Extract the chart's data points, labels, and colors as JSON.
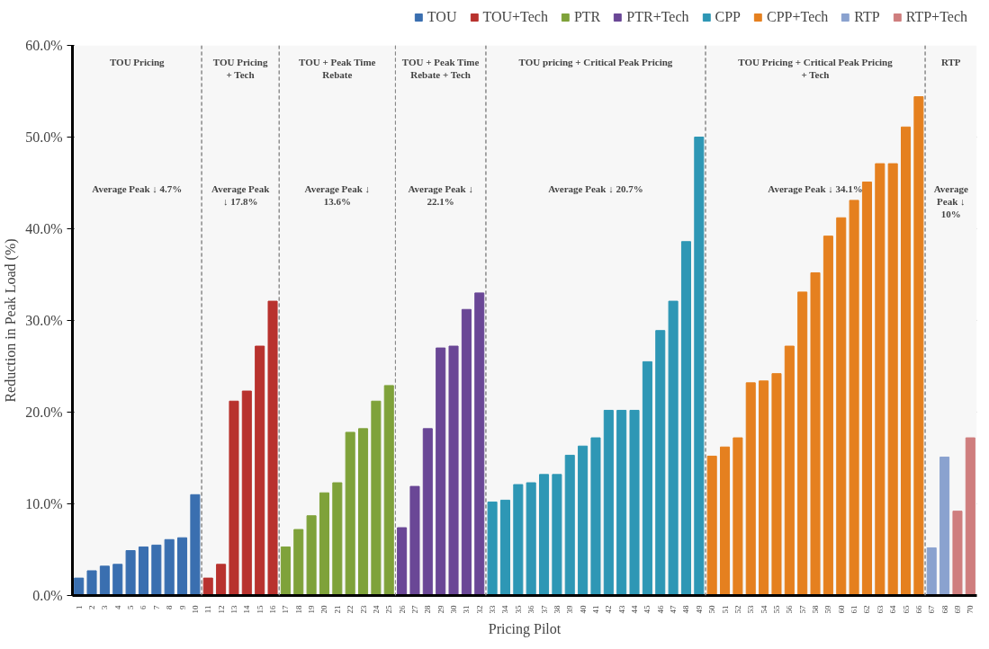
{
  "chart_data": {
    "type": "bar",
    "ylabel": "Reduction in Peak Load (%)",
    "xlabel": "Pricing Pilot",
    "categories": [
      "1",
      "2",
      "3",
      "4",
      "5",
      "6",
      "7",
      "8",
      "9",
      "10",
      "11",
      "12",
      "13",
      "14",
      "15",
      "16",
      "17",
      "18",
      "19",
      "20",
      "21",
      "22",
      "23",
      "24",
      "25",
      "26",
      "27",
      "28",
      "29",
      "30",
      "31",
      "32",
      "33",
      "34",
      "35",
      "36",
      "37",
      "38",
      "39",
      "40",
      "41",
      "42",
      "43",
      "44",
      "45",
      "46",
      "47",
      "48",
      "49",
      "50",
      "51",
      "52",
      "53",
      "54",
      "55",
      "56",
      "57",
      "58",
      "59",
      "60",
      "61",
      "62",
      "63",
      "64",
      "65",
      "66",
      "67",
      "68",
      "69",
      "70"
    ],
    "series": [
      {
        "name": "TOU",
        "color": "#3a6fb0",
        "values": [
          1.9,
          2.7,
          3.2,
          3.4,
          4.9,
          5.3,
          5.5,
          6.1,
          6.3,
          11.0,
          null,
          null,
          null,
          null,
          null,
          null,
          null,
          null,
          null,
          null,
          null,
          null,
          null,
          null,
          null,
          null,
          null,
          null,
          null,
          null,
          null,
          null,
          null,
          null,
          null,
          null,
          null,
          null,
          null,
          null,
          null,
          null,
          null,
          null,
          null,
          null,
          null,
          null,
          null,
          null,
          null,
          null,
          null,
          null,
          null,
          null,
          null,
          null,
          null,
          null,
          null,
          null,
          null,
          null,
          null,
          null,
          null,
          null,
          null,
          null
        ]
      },
      {
        "name": "TOU+Tech",
        "color": "#b8322e",
        "values": [
          null,
          null,
          null,
          null,
          null,
          null,
          null,
          null,
          null,
          null,
          1.9,
          3.4,
          21.2,
          22.3,
          27.2,
          32.1,
          null,
          null,
          null,
          null,
          null,
          null,
          null,
          null,
          null,
          null,
          null,
          null,
          null,
          null,
          null,
          null,
          null,
          null,
          null,
          null,
          null,
          null,
          null,
          null,
          null,
          null,
          null,
          null,
          null,
          null,
          null,
          null,
          null,
          null,
          null,
          null,
          null,
          null,
          null,
          null,
          null,
          null,
          null,
          null,
          null,
          null,
          null,
          null,
          null,
          null,
          null,
          null,
          null,
          null
        ]
      },
      {
        "name": "PTR",
        "color": "#7fa23a",
        "values": [
          null,
          null,
          null,
          null,
          null,
          null,
          null,
          null,
          null,
          null,
          null,
          null,
          null,
          null,
          null,
          null,
          5.3,
          7.2,
          8.7,
          11.2,
          12.3,
          17.8,
          18.2,
          21.2,
          22.9,
          null,
          null,
          null,
          null,
          null,
          null,
          null,
          null,
          null,
          null,
          null,
          null,
          null,
          null,
          null,
          null,
          null,
          null,
          null,
          null,
          null,
          null,
          null,
          null,
          null,
          null,
          null,
          null,
          null,
          null,
          null,
          null,
          null,
          null,
          null,
          null,
          null,
          null,
          null,
          null,
          null,
          null,
          null,
          null,
          null
        ]
      },
      {
        "name": "PTR+Tech",
        "color": "#6a4796",
        "values": [
          null,
          null,
          null,
          null,
          null,
          null,
          null,
          null,
          null,
          null,
          null,
          null,
          null,
          null,
          null,
          null,
          null,
          null,
          null,
          null,
          null,
          null,
          null,
          null,
          null,
          7.4,
          11.9,
          18.2,
          27.0,
          27.2,
          31.2,
          33.0,
          null,
          null,
          null,
          null,
          null,
          null,
          null,
          null,
          null,
          null,
          null,
          null,
          null,
          null,
          null,
          null,
          null,
          null,
          null,
          null,
          null,
          null,
          null,
          null,
          null,
          null,
          null,
          null,
          null,
          null,
          null,
          null,
          null,
          null,
          null,
          null,
          null,
          null
        ]
      },
      {
        "name": "CPP",
        "color": "#2e97b5",
        "values": [
          null,
          null,
          null,
          null,
          null,
          null,
          null,
          null,
          null,
          null,
          null,
          null,
          null,
          null,
          null,
          null,
          null,
          null,
          null,
          null,
          null,
          null,
          null,
          null,
          null,
          null,
          null,
          null,
          null,
          null,
          null,
          null,
          10.2,
          10.4,
          12.1,
          12.3,
          13.2,
          13.2,
          15.3,
          16.3,
          17.2,
          20.2,
          20.2,
          20.2,
          25.5,
          28.9,
          32.1,
          38.6,
          50.0,
          null,
          null,
          null,
          null,
          null,
          null,
          null,
          null,
          null,
          null,
          null,
          null,
          null,
          null,
          null,
          null,
          null,
          null,
          null,
          null,
          null
        ]
      },
      {
        "name": "CPP+Tech",
        "color": "#e5801f",
        "values": [
          null,
          null,
          null,
          null,
          null,
          null,
          null,
          null,
          null,
          null,
          null,
          null,
          null,
          null,
          null,
          null,
          null,
          null,
          null,
          null,
          null,
          null,
          null,
          null,
          null,
          null,
          null,
          null,
          null,
          null,
          null,
          null,
          null,
          null,
          null,
          null,
          null,
          null,
          null,
          null,
          null,
          null,
          null,
          null,
          null,
          null,
          null,
          null,
          null,
          15.2,
          16.2,
          17.2,
          23.2,
          23.4,
          24.2,
          27.2,
          33.1,
          35.2,
          39.2,
          41.2,
          43.1,
          45.1,
          47.1,
          47.1,
          51.1,
          54.4,
          null,
          null,
          null,
          null
        ]
      },
      {
        "name": "RTP",
        "color": "#8aa2cf",
        "values": [
          null,
          null,
          null,
          null,
          null,
          null,
          null,
          null,
          null,
          null,
          null,
          null,
          null,
          null,
          null,
          null,
          null,
          null,
          null,
          null,
          null,
          null,
          null,
          null,
          null,
          null,
          null,
          null,
          null,
          null,
          null,
          null,
          null,
          null,
          null,
          null,
          null,
          null,
          null,
          null,
          null,
          null,
          null,
          null,
          null,
          null,
          null,
          null,
          null,
          null,
          null,
          null,
          null,
          null,
          null,
          null,
          null,
          null,
          null,
          null,
          null,
          null,
          null,
          null,
          null,
          null,
          5.2,
          15.1,
          null,
          null
        ]
      },
      {
        "name": "RTP+Tech",
        "color": "#cf7e7e",
        "values": [
          null,
          null,
          null,
          null,
          null,
          null,
          null,
          null,
          null,
          null,
          null,
          null,
          null,
          null,
          null,
          null,
          null,
          null,
          null,
          null,
          null,
          null,
          null,
          null,
          null,
          null,
          null,
          null,
          null,
          null,
          null,
          null,
          null,
          null,
          null,
          null,
          null,
          null,
          null,
          null,
          null,
          null,
          null,
          null,
          null,
          null,
          null,
          null,
          null,
          null,
          null,
          null,
          null,
          null,
          null,
          null,
          null,
          null,
          null,
          null,
          null,
          null,
          null,
          null,
          null,
          null,
          null,
          null,
          9.2,
          17.2
        ]
      }
    ],
    "ylim": [
      0,
      60
    ],
    "yticks": [
      {
        "value": 0,
        "label": "0.0%"
      },
      {
        "value": 10,
        "label": "10.0%"
      },
      {
        "value": 20,
        "label": "20.0%"
      },
      {
        "value": 30,
        "label": "30.0%"
      },
      {
        "value": 40,
        "label": "40.0%"
      },
      {
        "value": 50,
        "label": "50.0%"
      },
      {
        "value": 60,
        "label": "60.0%"
      }
    ],
    "grid": "y",
    "legend": "top",
    "bands": [
      {
        "axis": "x",
        "from": "1",
        "to": "10",
        "label": "TOU Pricing",
        "color": "#f7f7f7"
      },
      {
        "axis": "x",
        "from": "11",
        "to": "16",
        "label": "TOU Pricing + Tech",
        "color": "#f7f7f7"
      },
      {
        "axis": "x",
        "from": "17",
        "to": "25",
        "label": "TOU + Peak Time Rebate",
        "color": "#f7f7f7"
      },
      {
        "axis": "x",
        "from": "26",
        "to": "32",
        "label": "TOU + Peak Time Rebate + Tech",
        "color": "#f7f7f7"
      },
      {
        "axis": "x",
        "from": "33",
        "to": "49",
        "label": "TOU pricing + Critical Peak Pricing",
        "color": "#f7f7f7"
      },
      {
        "axis": "x",
        "from": "50",
        "to": "66",
        "label": "TOU Pricing + Critical Peak Pricing + Tech",
        "color": "#f7f7f7"
      },
      {
        "axis": "x",
        "from": "67",
        "to": "70",
        "label": "RTP",
        "color": "#f7f7f7"
      }
    ],
    "annotations": [
      "Average Peak ↓ 4.7%",
      "Average Peak ↓ 17.8%",
      "Average Peak ↓ 13.6%",
      "Average Peak ↓ 22.1%",
      "Average Peak ↓ 20.7%",
      "Average Peak ↓ 34.1%",
      "Average Peak ↓ 10%"
    ]
  }
}
